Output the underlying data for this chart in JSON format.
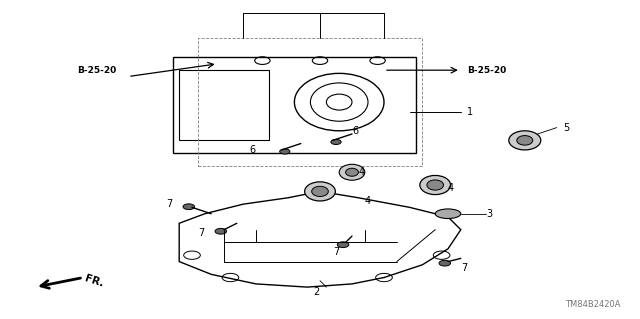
{
  "bg_color": "#ffffff",
  "fig_width": 6.4,
  "fig_height": 3.19,
  "dpi": 100,
  "title_code": "TM84B2420A",
  "fr_label": "FR.",
  "line_color": "#000000",
  "text_color": "#000000",
  "gray_color": "#888888"
}
